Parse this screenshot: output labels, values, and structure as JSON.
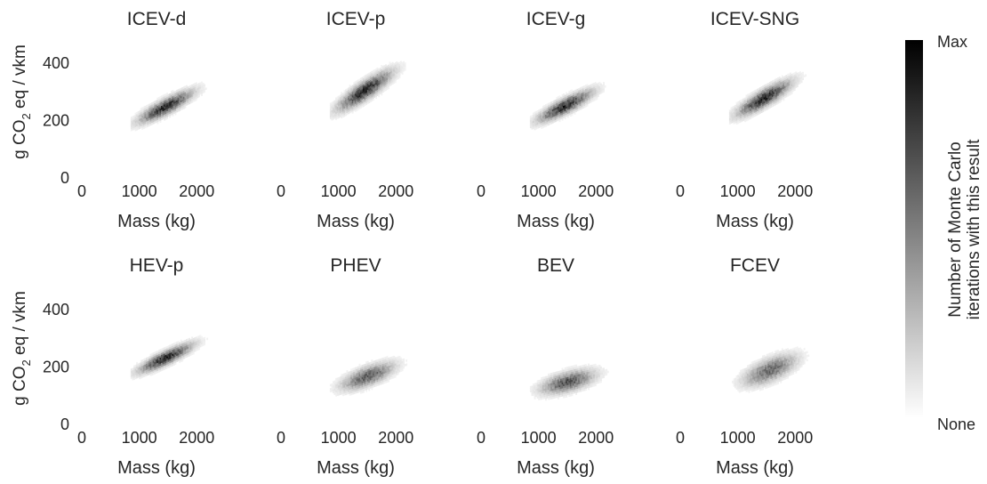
{
  "chart_data": {
    "type": "heatmap",
    "y_label_parts": [
      "g CO",
      "2",
      " eq / vkm"
    ],
    "x_label": "Mass (kg)",
    "x_ticks": [
      0,
      1000,
      2000
    ],
    "y_ticks": [
      0,
      200,
      400
    ],
    "xlim": [
      0,
      2600
    ],
    "ylim": [
      0,
      480
    ],
    "colorbar": {
      "label_line1": "Number of Monte Carlo",
      "label_line2": "iterations with this result",
      "max_label": "Max",
      "min_label": "None",
      "color_max": "#000000",
      "color_min": "#ffffff"
    },
    "panels": [
      {
        "title": "ICEV-d",
        "mass_range": [
          850,
          2300
        ],
        "intercept": 100,
        "slope": 0.1,
        "spread": 18,
        "peak_mass": 1450,
        "density": 1.0
      },
      {
        "title": "ICEV-p",
        "mass_range": [
          850,
          2300
        ],
        "intercept": 120,
        "slope": 0.125,
        "spread": 22,
        "peak_mass": 1450,
        "density": 1.0
      },
      {
        "title": "ICEV-g",
        "mass_range": [
          850,
          2300
        ],
        "intercept": 105,
        "slope": 0.098,
        "spread": 18,
        "peak_mass": 1450,
        "density": 1.0
      },
      {
        "title": "ICEV-SNG",
        "mass_range": [
          850,
          2300
        ],
        "intercept": 115,
        "slope": 0.11,
        "spread": 20,
        "peak_mass": 1450,
        "density": 1.0
      },
      {
        "title": "HEV-p",
        "mass_range": [
          850,
          2300
        ],
        "intercept": 95,
        "slope": 0.092,
        "spread": 16,
        "peak_mass": 1450,
        "density": 1.0
      },
      {
        "title": "PHEV",
        "mass_range": [
          850,
          2300
        ],
        "intercept": 60,
        "slope": 0.07,
        "spread": 22,
        "peak_mass": 1500,
        "density": 0.75
      },
      {
        "title": "BEV",
        "mass_range": [
          850,
          2300
        ],
        "intercept": 70,
        "slope": 0.05,
        "spread": 22,
        "peak_mass": 1500,
        "density": 0.8
      },
      {
        "title": "FCEV",
        "mass_range": [
          850,
          2400
        ],
        "intercept": 70,
        "slope": 0.075,
        "spread": 26,
        "peak_mass": 1550,
        "density": 0.7
      }
    ]
  }
}
